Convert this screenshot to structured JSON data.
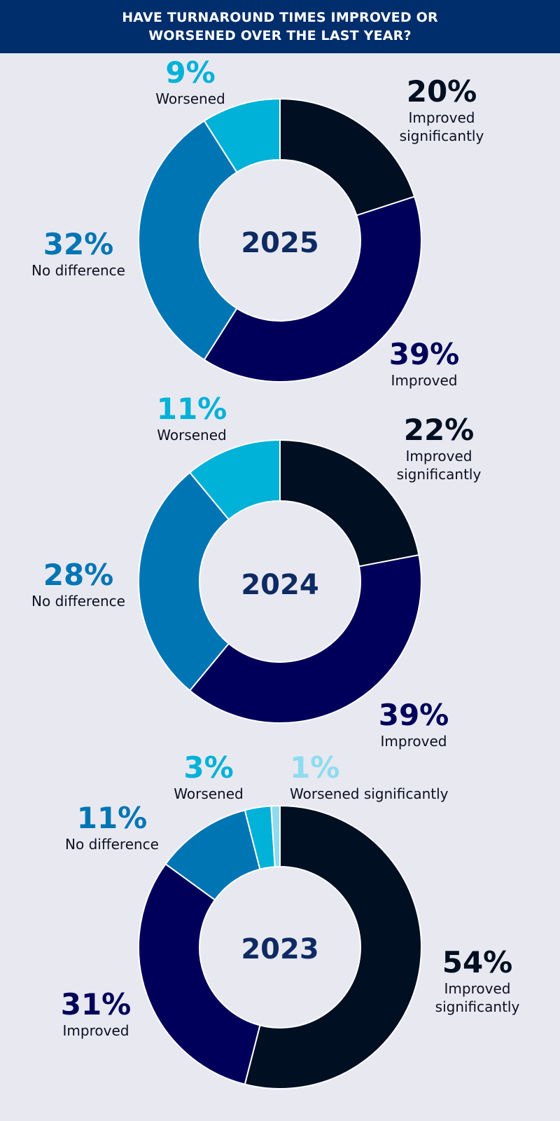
{
  "header": {
    "title": "HAVE TURNAROUND TIMES IMPROVED OR\nWORSENED OVER THE LAST YEAR?"
  },
  "colors": {
    "header_bg": "#002d6b",
    "background": "#e8e9f0",
    "improved_significantly": "#000f21",
    "improved": "#00005a",
    "no_difference": "#0075b4",
    "worsened": "#00b1d8",
    "worsened_significantly": "#8fdbf0",
    "year_label": "#0e2a63"
  },
  "chart_data": [
    {
      "type": "pie",
      "center_label": "2025",
      "slices": [
        {
          "pct_text": "20%",
          "value": 20,
          "label": "Improved\nsignificantly",
          "color": "#000f21"
        },
        {
          "pct_text": "39%",
          "value": 39,
          "label": "Improved",
          "color": "#00005a"
        },
        {
          "pct_text": "32%",
          "value": 32,
          "label": "No difference",
          "color": "#0075b4"
        },
        {
          "pct_text": "9%",
          "value": 9,
          "label": "Worsened",
          "color": "#00b1d8"
        }
      ]
    },
    {
      "type": "pie",
      "center_label": "2024",
      "slices": [
        {
          "pct_text": "22%",
          "value": 22,
          "label": "Improved\nsignificantly",
          "color": "#000f21"
        },
        {
          "pct_text": "39%",
          "value": 39,
          "label": "Improved",
          "color": "#00005a"
        },
        {
          "pct_text": "28%",
          "value": 28,
          "label": "No difference",
          "color": "#0075b4"
        },
        {
          "pct_text": "11%",
          "value": 11,
          "label": "Worsened",
          "color": "#00b1d8"
        }
      ]
    },
    {
      "type": "pie",
      "center_label": "2023",
      "slices": [
        {
          "pct_text": "54%",
          "value": 54,
          "label": "Improved\nsignificantly",
          "color": "#000f21"
        },
        {
          "pct_text": "31%",
          "value": 31,
          "label": "Improved",
          "color": "#00005a"
        },
        {
          "pct_text": "11%",
          "value": 11,
          "label": "No difference",
          "color": "#0075b4"
        },
        {
          "pct_text": "3%",
          "value": 3,
          "label": "Worsened",
          "color": "#00b1d8"
        },
        {
          "pct_text": "1%",
          "value": 1,
          "label": "Worsened significantly",
          "color": "#8fdbf0"
        }
      ]
    }
  ]
}
